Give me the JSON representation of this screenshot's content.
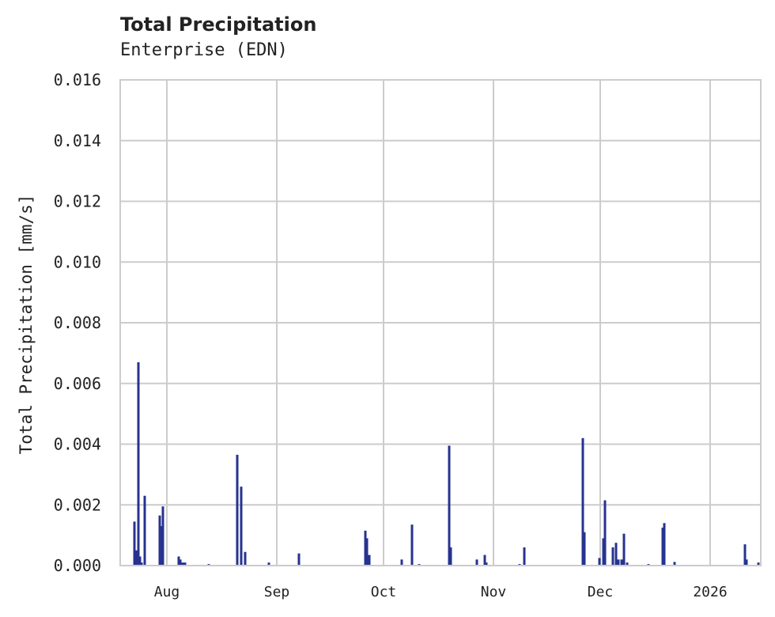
{
  "chart": {
    "title": "Total Precipitation",
    "subtitle": "Enterprise (EDN)"
  },
  "chart_data": {
    "type": "bar",
    "title": "Total Precipitation",
    "subtitle": "Enterprise (EDN)",
    "xlabel": "",
    "ylabel": "Total Precipitation [mm/s]",
    "ylim": [
      0,
      0.016
    ],
    "yticks": [
      "0.000",
      "0.002",
      "0.004",
      "0.006",
      "0.008",
      "0.010",
      "0.012",
      "0.014",
      "0.016"
    ],
    "xticks": [
      "Aug",
      "Sep",
      "Oct",
      "Nov",
      "Dec",
      "2026"
    ],
    "grid": true,
    "legend": "none",
    "bar_color": "#27338f",
    "series": [
      {
        "name": "Total Precipitation",
        "points": [
          {
            "x": 170,
            "y": 0.00145
          },
          {
            "x": 172,
            "y": 0.0005
          },
          {
            "x": 175,
            "y": 0.0067
          },
          {
            "x": 177,
            "y": 0.0003
          },
          {
            "x": 179,
            "y": 0.0001
          },
          {
            "x": 183,
            "y": 0.0023
          },
          {
            "x": 202,
            "y": 0.00165
          },
          {
            "x": 204,
            "y": 0.0013
          },
          {
            "x": 206,
            "y": 0.00195
          },
          {
            "x": 226,
            "y": 0.0003
          },
          {
            "x": 228,
            "y": 0.0002
          },
          {
            "x": 231,
            "y": 0.0001
          },
          {
            "x": 234,
            "y": 0.0001
          },
          {
            "x": 264,
            "y": 5e-05
          },
          {
            "x": 300,
            "y": 0.00365
          },
          {
            "x": 305,
            "y": 0.0026
          },
          {
            "x": 310,
            "y": 0.00045
          },
          {
            "x": 340,
            "y": 0.0001
          },
          {
            "x": 378,
            "y": 0.0004
          },
          {
            "x": 462,
            "y": 0.00115
          },
          {
            "x": 464,
            "y": 0.0009
          },
          {
            "x": 467,
            "y": 0.00035
          },
          {
            "x": 508,
            "y": 0.0002
          },
          {
            "x": 521,
            "y": 0.00135
          },
          {
            "x": 530,
            "y": 5e-05
          },
          {
            "x": 568,
            "y": 0.00395
          },
          {
            "x": 570,
            "y": 0.0006
          },
          {
            "x": 603,
            "y": 0.0002
          },
          {
            "x": 613,
            "y": 0.00035
          },
          {
            "x": 615,
            "y": 0.0001
          },
          {
            "x": 657,
            "y": 5e-05
          },
          {
            "x": 663,
            "y": 0.0006
          },
          {
            "x": 737,
            "y": 0.0042
          },
          {
            "x": 739,
            "y": 0.0011
          },
          {
            "x": 758,
            "y": 0.00025
          },
          {
            "x": 763,
            "y": 0.0009
          },
          {
            "x": 765,
            "y": 0.00215
          },
          {
            "x": 775,
            "y": 0.0006
          },
          {
            "x": 779,
            "y": 0.00075
          },
          {
            "x": 782,
            "y": 0.0002
          },
          {
            "x": 786,
            "y": 0.0002
          },
          {
            "x": 789,
            "y": 0.00105
          },
          {
            "x": 793,
            "y": 0.0001
          },
          {
            "x": 820,
            "y": 5e-05
          },
          {
            "x": 838,
            "y": 0.00125
          },
          {
            "x": 840,
            "y": 0.0014
          },
          {
            "x": 853,
            "y": 0.00012
          },
          {
            "x": 942,
            "y": 0.0007
          },
          {
            "x": 944,
            "y": 0.0002
          },
          {
            "x": 959,
            "y": 0.0001
          }
        ]
      }
    ]
  }
}
